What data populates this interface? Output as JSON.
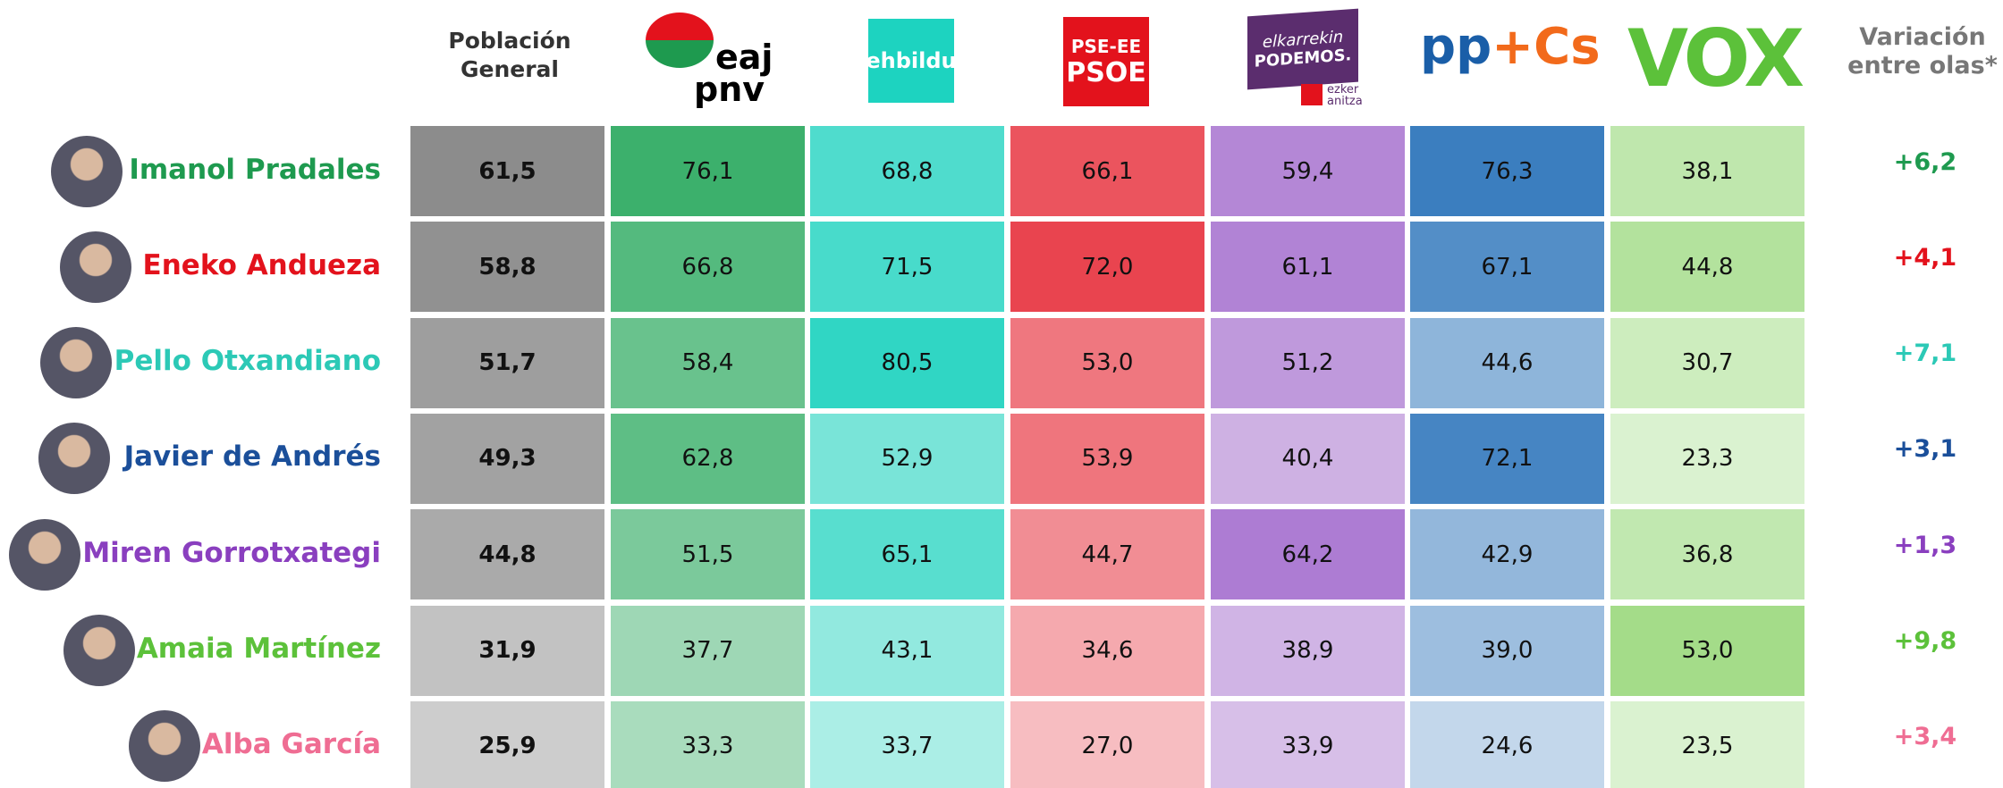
{
  "header": {
    "population": "Población General",
    "variation": "Variación entre olas*",
    "logos": {
      "pnv": [
        "eaj",
        "pnv"
      ],
      "bildu": "ehbildu",
      "psoe": [
        "PSE-EE",
        "PSOE"
      ],
      "podemos": [
        "elkarrekin",
        "PODEMOS.",
        "ezker",
        "anitza"
      ],
      "pp": [
        "pp",
        "+",
        "Cs"
      ],
      "vox": "VOX"
    }
  },
  "columns": [
    {
      "light": "#cdcdcd",
      "dark": "#8c8c8c"
    },
    {
      "light": "#a9dcbd",
      "dark": "#3cb06c"
    },
    {
      "light": "#abeee6",
      "dark": "#30d6c4"
    },
    {
      "light": "#f7bdc1",
      "dark": "#e9444f"
    },
    {
      "light": "#d7bfe8",
      "dark": "#ad7cd3"
    },
    {
      "light": "#c3d7eb",
      "dark": "#3b7ebf"
    },
    {
      "light": "#daf2d0",
      "dark": "#a4dc89"
    }
  ],
  "table": {
    "rows": [
      {
        "name": "Imanol Pradales",
        "color": "#1e9a4f",
        "cells": [
          "61,5",
          "76,1",
          "68,8",
          "66,1",
          "59,4",
          "76,3",
          "38,1"
        ],
        "variation": "+6,2"
      },
      {
        "name": "Eneko Andueza",
        "color": "#e3121c",
        "cells": [
          "58,8",
          "66,8",
          "71,5",
          "72,0",
          "61,1",
          "67,1",
          "44,8"
        ],
        "variation": "+4,1"
      },
      {
        "name": "Pello Otxandiano",
        "color": "#2cc9b6",
        "cells": [
          "51,7",
          "58,4",
          "80,5",
          "53,0",
          "51,2",
          "44,6",
          "30,7"
        ],
        "variation": "+7,1"
      },
      {
        "name": "Javier de Andrés",
        "color": "#1b4f9a",
        "cells": [
          "49,3",
          "62,8",
          "52,9",
          "53,9",
          "40,4",
          "72,1",
          "23,3"
        ],
        "variation": "+3,1"
      },
      {
        "name": "Miren Gorrotxategi",
        "color": "#8a3fbf",
        "cells": [
          "44,8",
          "51,5",
          "65,1",
          "44,7",
          "64,2",
          "42,9",
          "36,8"
        ],
        "variation": "+1,3"
      },
      {
        "name": "Amaia Martínez",
        "color": "#5cc13a",
        "cells": [
          "31,9",
          "37,7",
          "43,1",
          "34,6",
          "38,9",
          "39,0",
          "53,0"
        ],
        "variation": "+9,8"
      },
      {
        "name": "Alba García",
        "color": "#ef6d93",
        "cells": [
          "25,9",
          "33,3",
          "33,7",
          "27,0",
          "33,9",
          "24,6",
          "23,5"
        ],
        "variation": "+3,4"
      }
    ]
  }
}
